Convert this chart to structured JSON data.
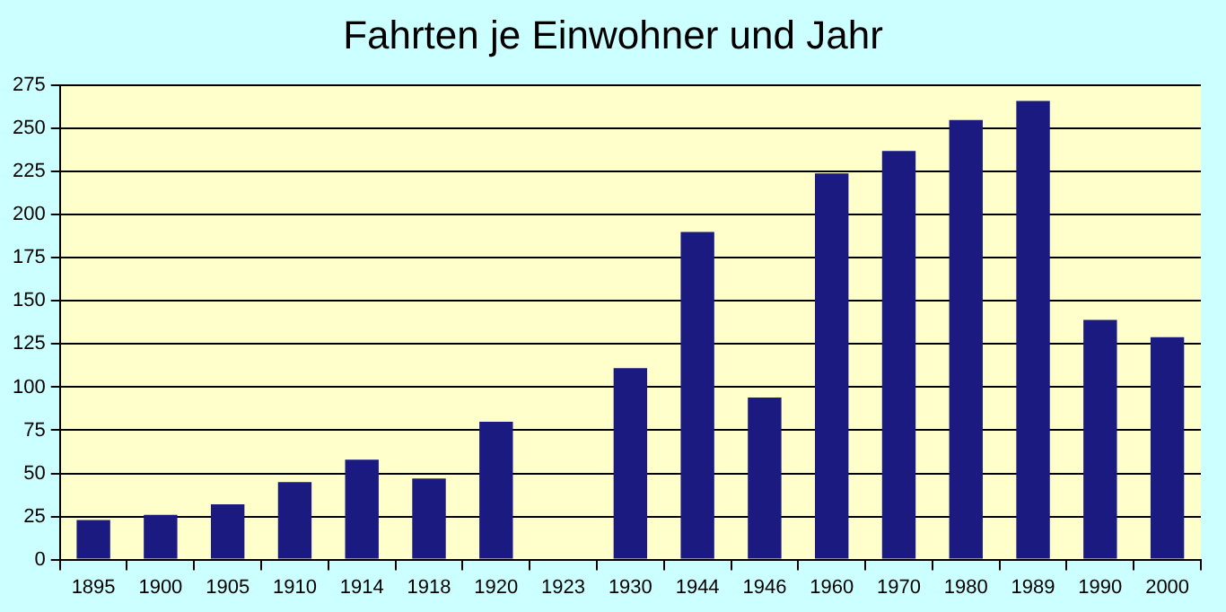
{
  "chart_data": {
    "type": "bar",
    "title": "Fahrten je Einwohner und Jahr",
    "categories": [
      "1895",
      "1900",
      "1905",
      "1910",
      "1914",
      "1918",
      "1920",
      "1923",
      "1930",
      "1944",
      "1946",
      "1960",
      "1970",
      "1980",
      "1989",
      "1990",
      "2000"
    ],
    "values": [
      23,
      26,
      32,
      45,
      58,
      47,
      80,
      null,
      111,
      190,
      94,
      224,
      237,
      255,
      266,
      139,
      129
    ],
    "color": "#1a1a80",
    "ylim": [
      0,
      275
    ],
    "yticks": [
      0,
      25,
      50,
      75,
      100,
      125,
      150,
      175,
      200,
      225,
      250,
      275
    ],
    "grid": "y"
  }
}
